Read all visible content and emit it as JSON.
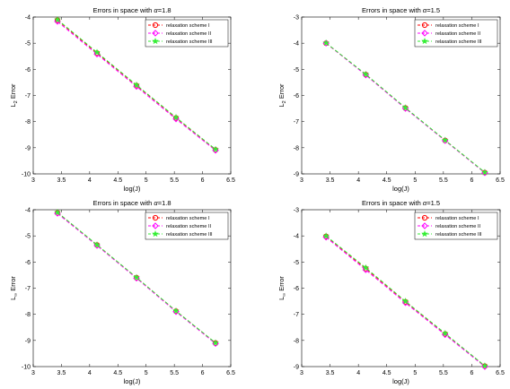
{
  "chart_data": [
    {
      "type": "line",
      "title_prefix": "Errors in space with ",
      "title_symbol": "α",
      "title_suffix": "=1.8",
      "xlabel": "log(J)",
      "ylabel_main": "L",
      "ylabel_sub": "2",
      "ylabel_tail": " Error",
      "xlim": [
        3,
        6.5
      ],
      "ylim": [
        -10,
        -4
      ],
      "xticks": [
        "3",
        "3.5",
        "4",
        "4.5",
        "5",
        "5.5",
        "6",
        "6.5"
      ],
      "yticks": [
        "-10",
        "-9",
        "-8",
        "-7",
        "-6",
        "-5",
        "-4"
      ],
      "x": [
        3.43,
        4.13,
        4.83,
        5.53,
        6.23
      ],
      "series": [
        {
          "name": "relaxation scheme I",
          "color": "#ff0000",
          "marker": "circle",
          "values": [
            -4.12,
            -5.38,
            -6.62,
            -7.86,
            -9.08
          ]
        },
        {
          "name": "relaxation scheme II",
          "color": "#ff00ff",
          "marker": "diamond",
          "values": [
            -4.17,
            -5.42,
            -6.66,
            -7.9,
            -9.1
          ]
        },
        {
          "name": "relaxation scheme III",
          "color": "#33ee33",
          "marker": "star",
          "values": [
            -4.1,
            -5.35,
            -6.6,
            -7.84,
            -9.06
          ]
        }
      ],
      "legend": "top-right"
    },
    {
      "type": "line",
      "title_prefix": "Errors in space with ",
      "title_symbol": "α",
      "title_suffix": "=1.5",
      "xlabel": "log(J)",
      "ylabel_main": "L",
      "ylabel_sub": "2",
      "ylabel_tail": " Error",
      "xlim": [
        3,
        6.5
      ],
      "ylim": [
        -9,
        -3
      ],
      "xticks": [
        "3",
        "3.5",
        "4",
        "4.5",
        "5",
        "5.5",
        "6",
        "6.5"
      ],
      "yticks": [
        "-9",
        "-8",
        "-7",
        "-6",
        "-5",
        "-4",
        "-3"
      ],
      "x": [
        3.43,
        4.13,
        4.83,
        5.53,
        6.23
      ],
      "series": [
        {
          "name": "relaxation scheme I",
          "color": "#ff0000",
          "marker": "circle",
          "values": [
            -4.0,
            -5.2,
            -6.48,
            -7.72,
            -8.95
          ]
        },
        {
          "name": "relaxation scheme II",
          "color": "#ff00ff",
          "marker": "diamond",
          "values": [
            -4.0,
            -5.22,
            -6.5,
            -7.73,
            -8.96
          ]
        },
        {
          "name": "relaxation scheme III",
          "color": "#33ee33",
          "marker": "star",
          "values": [
            -3.99,
            -5.19,
            -6.47,
            -7.71,
            -8.94
          ]
        }
      ],
      "legend": "top-right"
    },
    {
      "type": "line",
      "title_prefix": "Errors in space with ",
      "title_symbol": "α",
      "title_suffix": "=1.8",
      "xlabel": "log(J)",
      "ylabel_main": "L",
      "ylabel_sub": "∞",
      "ylabel_tail": " Error",
      "xlim": [
        3,
        6.5
      ],
      "ylim": [
        -10,
        -4
      ],
      "xticks": [
        "3",
        "3.5",
        "4",
        "4.5",
        "5",
        "5.5",
        "6",
        "6.5"
      ],
      "yticks": [
        "-10",
        "-9",
        "-8",
        "-7",
        "-6",
        "-5",
        "-4"
      ],
      "x": [
        3.43,
        4.13,
        4.83,
        5.53,
        6.23
      ],
      "series": [
        {
          "name": "relaxation scheme I",
          "color": "#ff0000",
          "marker": "circle",
          "values": [
            -4.12,
            -5.35,
            -6.6,
            -7.88,
            -9.1
          ]
        },
        {
          "name": "relaxation scheme II",
          "color": "#ff00ff",
          "marker": "diamond",
          "values": [
            -4.14,
            -5.37,
            -6.62,
            -7.9,
            -9.12
          ]
        },
        {
          "name": "relaxation scheme III",
          "color": "#33ee33",
          "marker": "star",
          "values": [
            -4.1,
            -5.34,
            -6.59,
            -7.87,
            -9.09
          ]
        }
      ],
      "legend": "top-right"
    },
    {
      "type": "line",
      "title_prefix": "Errors in space with ",
      "title_symbol": "α",
      "title_suffix": "=1.5",
      "xlabel": "log(J)",
      "ylabel_main": "L",
      "ylabel_sub": "∞",
      "ylabel_tail": " Error",
      "xlim": [
        3,
        6.5
      ],
      "ylim": [
        -9,
        -3
      ],
      "xticks": [
        "3",
        "3.5",
        "4",
        "4.5",
        "5",
        "5.5",
        "6",
        "6.5"
      ],
      "yticks": [
        "-9",
        "-8",
        "-7",
        "-6",
        "-5",
        "-4",
        "-3"
      ],
      "x": [
        3.43,
        4.13,
        4.83,
        5.53,
        6.23
      ],
      "series": [
        {
          "name": "relaxation scheme I",
          "color": "#ff0000",
          "marker": "circle",
          "values": [
            -4.02,
            -5.25,
            -6.52,
            -7.75,
            -8.98
          ]
        },
        {
          "name": "relaxation scheme II",
          "color": "#ff00ff",
          "marker": "diamond",
          "values": [
            -4.05,
            -5.3,
            -6.56,
            -7.78,
            -9.0
          ]
        },
        {
          "name": "relaxation scheme III",
          "color": "#33ee33",
          "marker": "star",
          "values": [
            -4.0,
            -5.22,
            -6.5,
            -7.73,
            -8.97
          ]
        }
      ],
      "legend": "top-right"
    }
  ]
}
